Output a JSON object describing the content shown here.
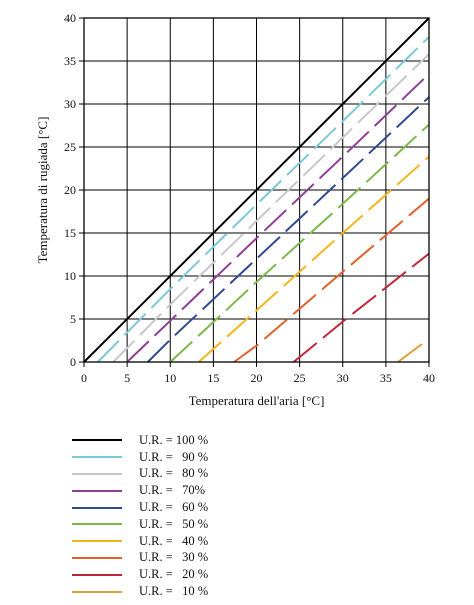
{
  "chart_data": {
    "type": "line",
    "title": "",
    "xlabel": "Temperatura dell'aria [°C]",
    "ylabel": "Temperatura di rugiada [°C]",
    "xlim": [
      0,
      40
    ],
    "ylim": [
      0,
      40
    ],
    "xticks": [
      0,
      5,
      10,
      15,
      20,
      25,
      30,
      35,
      40
    ],
    "yticks": [
      0,
      5,
      10,
      15,
      20,
      25,
      30,
      35,
      40
    ],
    "grid": true,
    "legend_position": "bottom",
    "series": [
      {
        "name": "U.R. = 100 %",
        "color": "#000000",
        "dash": "solid",
        "x": [
          0,
          40
        ],
        "y": [
          0,
          40
        ]
      },
      {
        "name": "U.R. =   90 %",
        "color": "#7cc8d6",
        "dash": "long",
        "x": [
          1.6,
          10,
          20,
          30,
          40
        ],
        "y": [
          0,
          8.5,
          18.3,
          28.0,
          37.8
        ]
      },
      {
        "name": "U.R. =   80 %",
        "color": "#c8c8c8",
        "dash": "long",
        "x": [
          3.4,
          10,
          20,
          30,
          40
        ],
        "y": [
          0,
          6.7,
          16.4,
          26.1,
          35.8
        ]
      },
      {
        "name": "U.R. =   70%",
        "color": "#8e3e95",
        "dash": "long",
        "x": [
          5.0,
          10,
          20,
          30,
          40
        ],
        "y": [
          0,
          4.8,
          14.4,
          23.9,
          33.5
        ]
      },
      {
        "name": "U.R. =   60 %",
        "color": "#2f4a8e",
        "dash": "long",
        "x": [
          7.4,
          10,
          20,
          30,
          40
        ],
        "y": [
          0,
          2.6,
          12.0,
          21.4,
          30.8
        ]
      },
      {
        "name": "U.R. =   50 %",
        "color": "#7db84a",
        "dash": "long",
        "x": [
          10.0,
          20,
          30,
          40
        ],
        "y": [
          0,
          9.3,
          18.4,
          27.6
        ]
      },
      {
        "name": "U.R. =   40 %",
        "color": "#f2b61c",
        "dash": "long",
        "x": [
          13.3,
          20,
          30,
          40
        ],
        "y": [
          0,
          6.0,
          15.0,
          23.9
        ]
      },
      {
        "name": "U.R. =   30 %",
        "color": "#e0622a",
        "dash": "long",
        "x": [
          17.4,
          20,
          30,
          40
        ],
        "y": [
          0,
          1.9,
          10.5,
          19.0
        ]
      },
      {
        "name": "U.R. =   20 %",
        "color": "#c0283a",
        "dash": "long",
        "x": [
          24.3,
          30,
          40
        ],
        "y": [
          0,
          4.7,
          12.6
        ]
      },
      {
        "name": "U.R. =   10 %",
        "color": "#d9a23a",
        "dash": "long",
        "x": [
          36.4,
          40
        ],
        "y": [
          0,
          2.7
        ]
      }
    ]
  }
}
